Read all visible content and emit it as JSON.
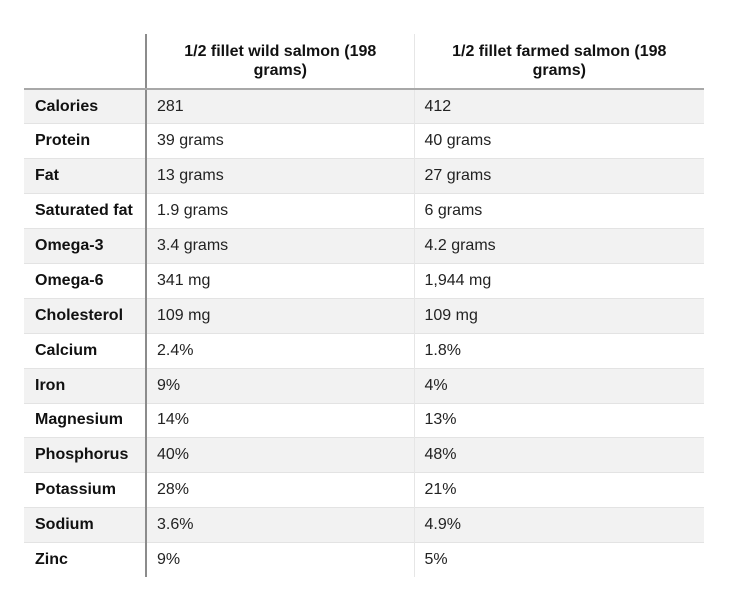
{
  "table": {
    "headers": [
      "",
      "1/2 fillet wild salmon (198 grams)",
      "1/2 fillet farmed salmon (198 grams)"
    ],
    "rows": [
      {
        "nutrient": "Calories",
        "wild": "281",
        "farmed": "412"
      },
      {
        "nutrient": "Protein",
        "wild": "39 grams",
        "farmed": "40 grams"
      },
      {
        "nutrient": "Fat",
        "wild": "13 grams",
        "farmed": "27 grams"
      },
      {
        "nutrient": "Saturated fat",
        "wild": "1.9 grams",
        "farmed": "6 grams"
      },
      {
        "nutrient": "Omega-3",
        "wild": "3.4 grams",
        "farmed": "4.2 grams"
      },
      {
        "nutrient": "Omega-6",
        "wild": "341 mg",
        "farmed": "1,944 mg"
      },
      {
        "nutrient": "Cholesterol",
        "wild": "109 mg",
        "farmed": "109 mg"
      },
      {
        "nutrient": "Calcium",
        "wild": "2.4%",
        "farmed": "1.8%"
      },
      {
        "nutrient": "Iron",
        "wild": "9%",
        "farmed": "4%"
      },
      {
        "nutrient": "Magnesium",
        "wild": "14%",
        "farmed": "13%"
      },
      {
        "nutrient": "Phosphorus",
        "wild": "40%",
        "farmed": "48%"
      },
      {
        "nutrient": "Potassium",
        "wild": "28%",
        "farmed": "21%"
      },
      {
        "nutrient": "Sodium",
        "wild": "3.6%",
        "farmed": "4.9%"
      },
      {
        "nutrient": "Zinc",
        "wild": "9%",
        "farmed": "5%"
      }
    ]
  },
  "colors": {
    "row_alt_background": "#f2f2f2",
    "divider": "#8c8c8c",
    "text": "#111111"
  }
}
